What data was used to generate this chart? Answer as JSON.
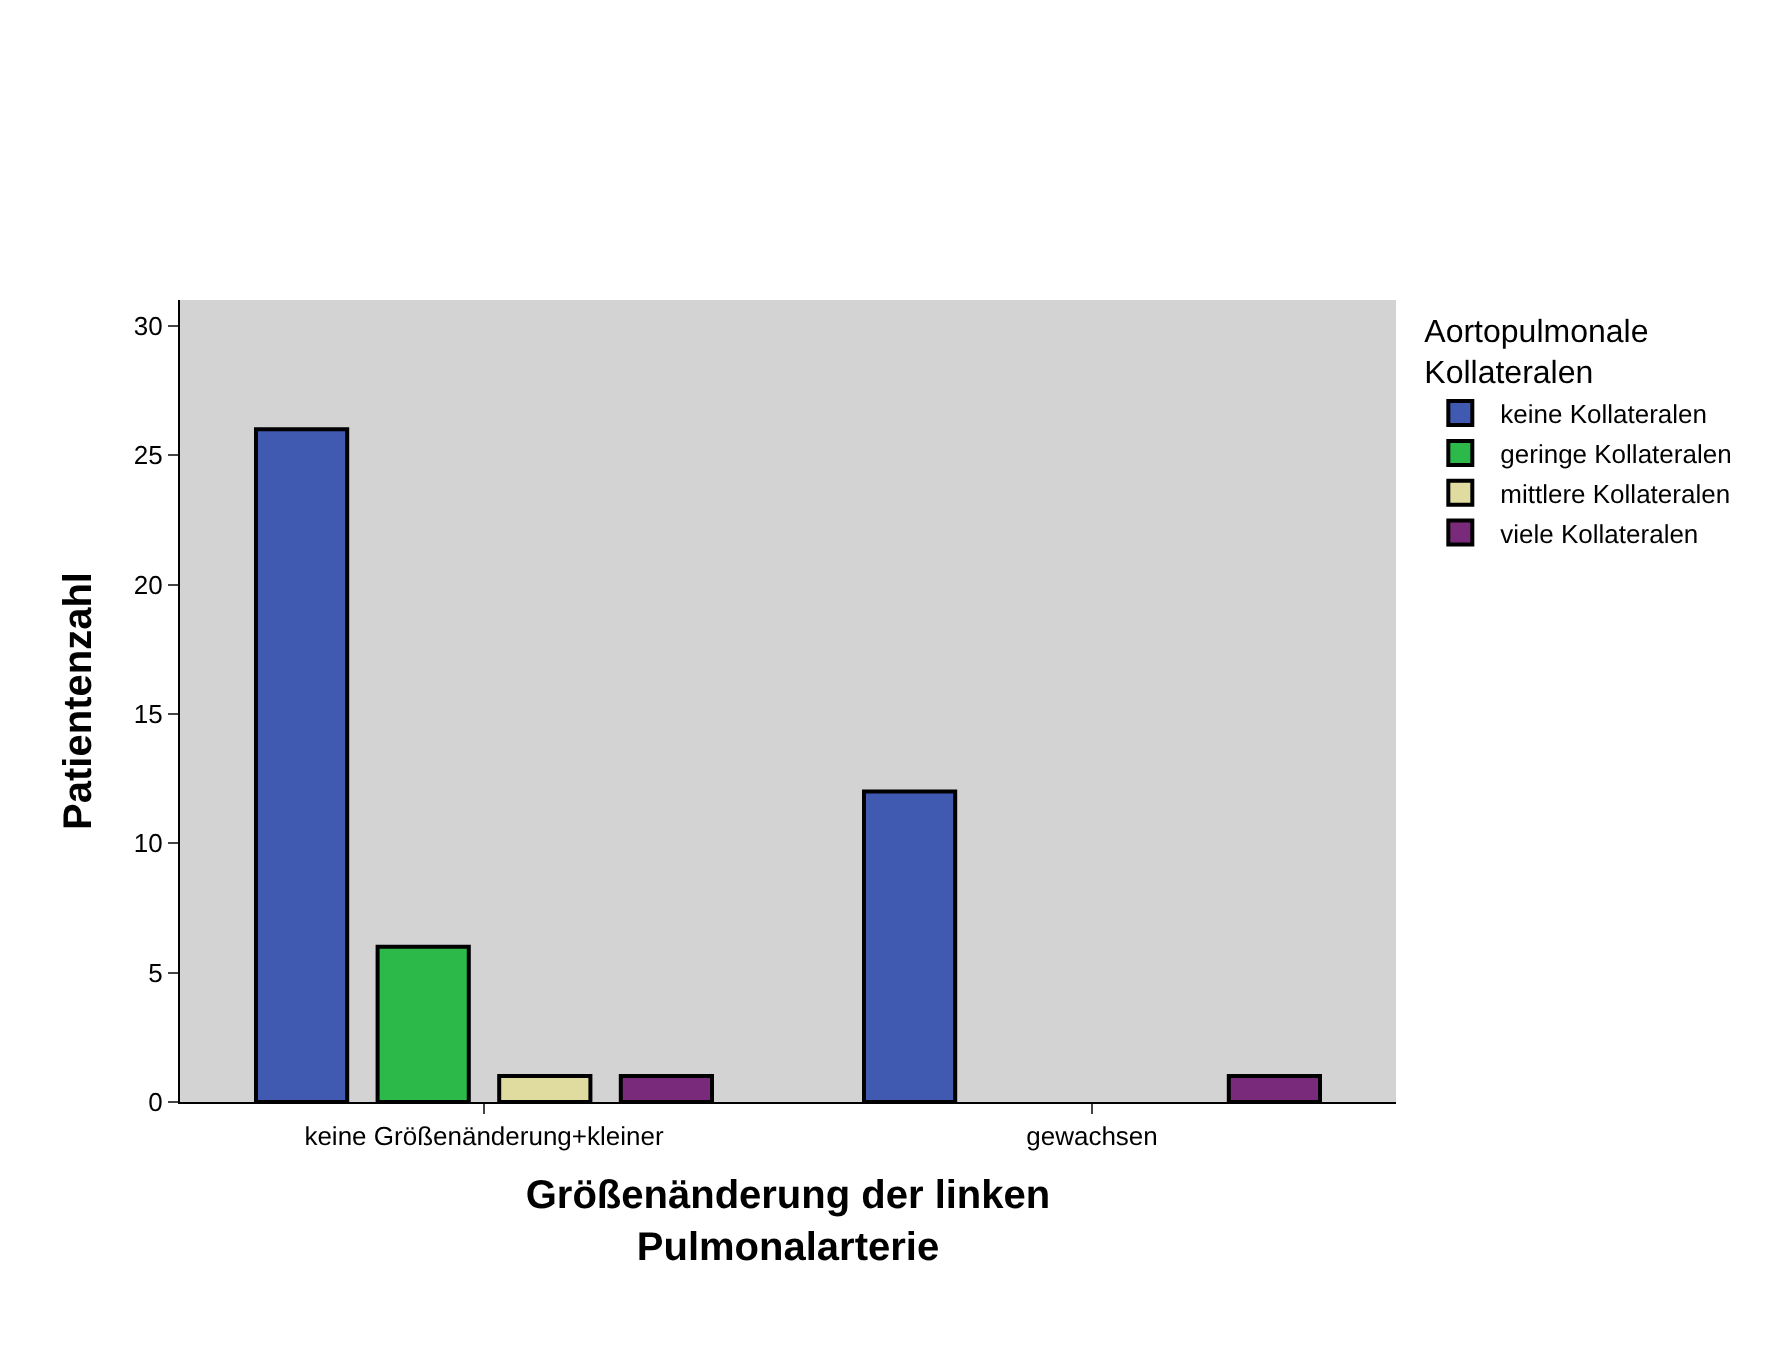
{
  "chart_data": {
    "type": "bar",
    "categories": [
      "keine Größenänderung+kleiner",
      "gewachsen"
    ],
    "xlabel": "Größenänderung der linken\nPulmonalarterie",
    "ylabel": "Patientenzahl",
    "legend_title": "Aortopulmonale\nKollateralen",
    "series": [
      {
        "name": "keine Kollateralen",
        "color": "#3f5ab0",
        "values": [
          26,
          12
        ]
      },
      {
        "name": "geringe Kollateralen",
        "color": "#2db84a",
        "values": [
          6,
          0
        ]
      },
      {
        "name": "mittlere Kollateralen",
        "color": "#e0dca0",
        "values": [
          1,
          0
        ]
      },
      {
        "name": "viele Kollateralen",
        "color": "#7a2a7a",
        "values": [
          1,
          1
        ]
      }
    ],
    "ylim": [
      0,
      31
    ],
    "yticks": [
      0,
      5,
      10,
      15,
      20,
      25,
      30
    ],
    "grid": false,
    "legend": "right"
  }
}
